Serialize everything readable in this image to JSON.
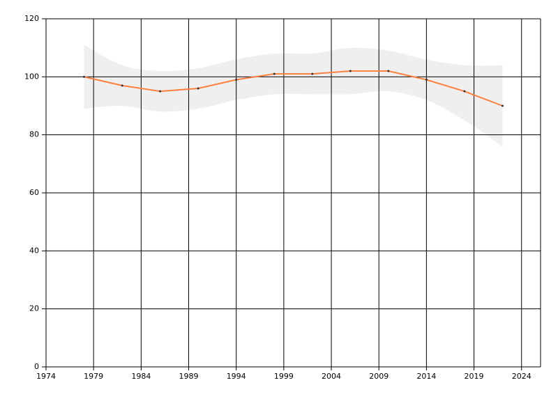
{
  "chart_data": {
    "type": "line",
    "x": [
      1978,
      1982,
      1986,
      1990,
      1994,
      1998,
      2002,
      2006,
      2010,
      2014,
      2018,
      2022
    ],
    "series": [
      {
        "color": "#ff7f3f",
        "values": [
          100,
          97,
          95,
          96,
          99,
          101,
          101,
          102,
          102,
          99,
          95,
          90
        ]
      }
    ],
    "band": {
      "color": "#efefef",
      "upper": [
        111,
        104,
        102,
        103,
        106,
        108,
        108,
        110,
        109,
        106,
        104,
        104
      ],
      "lower": [
        89,
        90,
        88,
        89,
        92,
        94,
        94,
        94,
        95,
        92,
        85,
        76
      ]
    },
    "xlim": [
      1974,
      2026
    ],
    "xticks": [
      1974,
      1979,
      1984,
      1989,
      1994,
      1999,
      2004,
      2009,
      2014,
      2019,
      2024
    ],
    "ylim": [
      0,
      120
    ],
    "yticks": [
      0,
      20,
      40,
      60,
      80,
      100,
      120
    ],
    "grid": true
  }
}
